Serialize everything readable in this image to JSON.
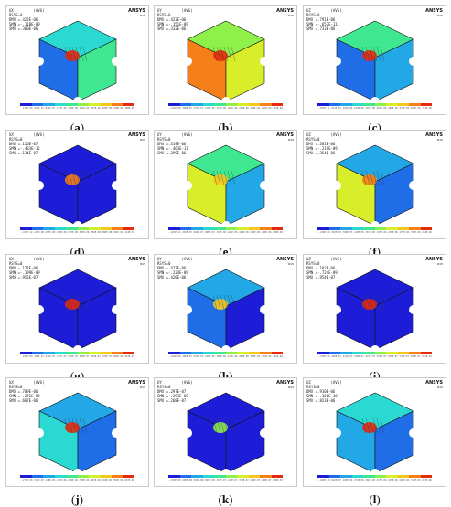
{
  "brand": "ANSYS",
  "brand_sub": "R15",
  "legend_colors": [
    "#1d1dd8",
    "#1f6ee8",
    "#22a8e6",
    "#2ad9d2",
    "#3fe890",
    "#8ff04a",
    "#d8ee2a",
    "#f5c820",
    "#f57f18",
    "#e52a10"
  ],
  "panels": [
    {
      "id": "a",
      "label": "a",
      "hdr": [
        "UX         (AVG)",
        "RSYS=0",
        "DMX =.422E-06",
        "SMN =-.118E-09",
        "SMX =.380E-06"
      ],
      "ticks": [
        "-.118E-09",
        ".422E-07",
        ".844E-07",
        ".127E-06",
        ".169E-06",
        ".211E-06",
        ".253E-06",
        ".295E-06",
        ".338E-06",
        ".380E-06"
      ],
      "face": {
        "top": "#2ad9d2",
        "left": "#1f6ee8",
        "right": "#3fe890",
        "hot": "#e52a10"
      }
    },
    {
      "id": "b",
      "label": "b",
      "hdr": [
        "UY         (AVG)",
        "RSYS=0",
        "DMX =.422E-06",
        "SMN =-.151E-09",
        "SMX =.332E-06"
      ],
      "ticks": [
        "-.151E-09",
        ".368E-07",
        ".737E-07",
        ".110E-06",
        ".147E-06",
        ".184E-06",
        ".221E-06",
        ".258E-06",
        ".295E-06",
        ".332E-06"
      ],
      "face": {
        "top": "#8ff04a",
        "left": "#f57f18",
        "right": "#d8ee2a",
        "hot": "#e52a10"
      }
    },
    {
      "id": "c",
      "label": "c",
      "hdr": [
        "UZ         (AVG)",
        "RSYS=0",
        "DMX =.791E-06",
        "SMN =-.653E-11",
        "SMX =.733E-06"
      ],
      "ticks": [
        "-.653E-11",
        ".814E-07",
        ".163E-06",
        ".244E-06",
        ".326E-06",
        ".407E-06",
        ".489E-06",
        ".570E-06",
        ".652E-06",
        ".733E-06"
      ],
      "face": {
        "top": "#3fe890",
        "left": "#1f6ee8",
        "right": "#22a8e6",
        "hot": "#e52a10"
      }
    },
    {
      "id": "d",
      "label": "d",
      "hdr": [
        "UX         (AVG)",
        "RSYS=0",
        "DMX =.116E-07",
        "SMN =-.433E-12",
        "SMX =.114E-07"
      ],
      "ticks": [
        "-.433E-12",
        ".127E-08",
        ".253E-08",
        ".380E-08",
        ".507E-08",
        ".633E-08",
        ".760E-08",
        ".886E-08",
        ".101E-07",
        ".114E-07"
      ],
      "face": {
        "top": "#1d1dd8",
        "left": "#1d1dd8",
        "right": "#1d1dd8",
        "hot": "#f57f18"
      }
    },
    {
      "id": "e",
      "label": "e",
      "hdr": [
        "UY         (AVG)",
        "RSYS=0",
        "DMX =.319E-06",
        "SMN =-.463E-11",
        "SMX =.299E-06"
      ],
      "ticks": [
        "-.463E-11",
        ".332E-07",
        ".664E-07",
        ".996E-07",
        ".133E-06",
        ".166E-06",
        ".199E-06",
        ".232E-06",
        ".266E-06",
        ".299E-06"
      ],
      "face": {
        "top": "#3fe890",
        "left": "#d8ee2a",
        "right": "#22a8e6",
        "hot": "#f5c820"
      }
    },
    {
      "id": "f",
      "label": "f",
      "hdr": [
        "UZ         (AVG)",
        "RSYS=0",
        "DMX =.381E-06",
        "SMN =-.219E-09",
        "SMX =.354E-06"
      ],
      "ticks": [
        "-.219E-09",
        ".393E-07",
        ".786E-07",
        ".118E-06",
        ".157E-06",
        ".197E-06",
        ".236E-06",
        ".275E-06",
        ".315E-06",
        ".354E-06"
      ],
      "face": {
        "top": "#22a8e6",
        "left": "#d8ee2a",
        "right": "#1f6ee8",
        "hot": "#f57f18"
      }
    },
    {
      "id": "g",
      "label": "g",
      "hdr": [
        "UX         (AVG)",
        "RSYS=0",
        "DMX =.177E-06",
        "SMN =-.199E-09",
        "SMX =.952E-07"
      ],
      "ticks": [
        "-.199E-09",
        ".105E-07",
        ".211E-07",
        ".317E-07",
        ".423E-07",
        ".529E-07",
        ".635E-07",
        ".741E-07",
        ".846E-07",
        ".952E-07"
      ],
      "face": {
        "top": "#1d1dd8",
        "left": "#1d1dd8",
        "right": "#1d1dd8",
        "hot": "#e52a10"
      }
    },
    {
      "id": "h",
      "label": "h",
      "hdr": [
        "UY         (AVG)",
        "RSYS=0",
        "DMX =.477E-06",
        "SMN =-.224E-09",
        "SMX =.420E-06"
      ],
      "ticks": [
        "-.224E-09",
        ".466E-07",
        ".933E-07",
        ".140E-06",
        ".186E-06",
        ".233E-06",
        ".280E-06",
        ".326E-06",
        ".373E-06",
        ".420E-06"
      ],
      "face": {
        "top": "#22a8e6",
        "left": "#1f6ee8",
        "right": "#1d1dd8",
        "hot": "#f5c820"
      }
    },
    {
      "id": "i",
      "label": "i",
      "hdr": [
        "UZ         (AVG)",
        "RSYS=0",
        "DMX =.102E-06",
        "SMN =-.724E-09",
        "SMX =.954E-07"
      ],
      "ticks": [
        "-.724E-09",
        ".106E-07",
        ".212E-07",
        ".318E-07",
        ".424E-07",
        ".530E-07",
        ".636E-07",
        ".742E-07",
        ".848E-07",
        ".954E-07"
      ],
      "face": {
        "top": "#1d1dd8",
        "left": "#1d1dd8",
        "right": "#1d1dd8",
        "hot": "#e52a10"
      }
    },
    {
      "id": "j",
      "label": "j",
      "hdr": [
        "UX         (AVG)",
        "RSYS=0",
        "DMX =.709E-06",
        "SMN =-.271E-09",
        "SMX =.667E-06"
      ],
      "ticks": [
        "-.271E-09",
        ".741E-07",
        ".148E-06",
        ".222E-06",
        ".296E-06",
        ".370E-06",
        ".445E-06",
        ".519E-06",
        ".593E-06",
        ".667E-06"
      ],
      "face": {
        "top": "#22a8e6",
        "left": "#2ad9d2",
        "right": "#1f6ee8",
        "hot": "#e52a10"
      }
    },
    {
      "id": "k",
      "label": "k",
      "hdr": [
        "UY         (AVG)",
        "RSYS=0",
        "DMX =.297E-07",
        "SMN =-.293E-09",
        "SMX =.268E-07"
      ],
      "ticks": [
        "-.293E-09",
        ".298E-08",
        ".596E-08",
        ".894E-08",
        ".119E-07",
        ".149E-07",
        ".179E-07",
        ".209E-07",
        ".238E-07",
        ".268E-07"
      ],
      "face": {
        "top": "#1d1dd8",
        "left": "#1d1dd8",
        "right": "#1d1dd8",
        "hot": "#8ff04a"
      }
    },
    {
      "id": "l",
      "label": "l",
      "hdr": [
        "UZ         (AVG)",
        "RSYS=0",
        "DMX =.910E-06",
        "SMN =-.166E-10",
        "SMX =.823E-06"
      ],
      "ticks": [
        "-.166E-10",
        ".914E-07",
        ".183E-06",
        ".274E-06",
        ".366E-06",
        ".457E-06",
        ".549E-06",
        ".640E-06",
        ".732E-06",
        ".823E-06"
      ],
      "face": {
        "top": "#2ad9d2",
        "left": "#22a8e6",
        "right": "#1f6ee8",
        "hot": "#e52a10"
      }
    }
  ]
}
